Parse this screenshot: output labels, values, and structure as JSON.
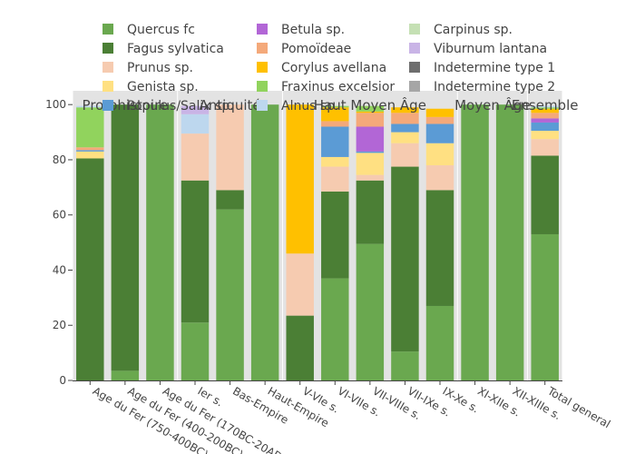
{
  "chart_data": {
    "type": "bar",
    "stacked": true,
    "title": "",
    "xlabel": "",
    "ylabel": "",
    "ylim": [
      0,
      105
    ],
    "yticks": [
      0,
      20,
      40,
      60,
      80,
      100
    ],
    "categories": [
      "Age du Fer (750-400BC)",
      "Age du Fer (400-200BC)",
      "Age du Fer (170BC-20AD)",
      "Ier s.",
      "Bas-Empire",
      "Haut-Empire",
      "V-VIe s.",
      "VI-VIIe s.",
      "VII-VIIIe s.",
      "VII-IXe s.",
      "IX-Xe s.",
      "XI-XIIe s.",
      "XII-XIIIe s.",
      "Total general"
    ],
    "groups": [
      {
        "label": "Protohistoire",
        "from": 0,
        "to": 2
      },
      {
        "label": "Antiquité",
        "from": 3,
        "to": 5
      },
      {
        "label": "Haut Moyen Âge",
        "from": 6,
        "to": 10
      },
      {
        "label": "Moyen Âge",
        "from": 11,
        "to": 12
      },
      {
        "label": "Ensemble",
        "from": 13,
        "to": 13
      }
    ],
    "series": [
      {
        "name": "Quercus fc",
        "color": "#6aa84f",
        "values": [
          0,
          3.5,
          100,
          21,
          62,
          100,
          0,
          37,
          49.5,
          10.5,
          27,
          100,
          100,
          53
        ]
      },
      {
        "name": "Fagus sylvatica",
        "color": "#4b7f35",
        "values": [
          80.5,
          96.5,
          0,
          51.5,
          7,
          0,
          23.5,
          31.5,
          23,
          67,
          42,
          0,
          0,
          28.5
        ]
      },
      {
        "name": "Prunus sp.",
        "color": "#f6cbb0",
        "values": [
          0,
          0,
          0,
          17,
          31,
          0,
          22.5,
          9,
          2,
          8.5,
          9,
          0,
          0,
          6
        ]
      },
      {
        "name": "Genista sp.",
        "color": "#ffe082",
        "values": [
          2.5,
          0,
          0,
          0,
          0,
          0,
          0,
          3.5,
          8,
          4,
          8,
          0,
          0,
          3
        ]
      },
      {
        "name": "Populus/Salix sp.",
        "color": "#5b9bd5",
        "values": [
          0.5,
          0,
          0,
          0,
          0,
          0,
          0,
          11,
          0.5,
          3,
          7,
          0,
          0,
          3
        ]
      },
      {
        "name": "Betula sp.",
        "color": "#b266d6",
        "values": [
          0,
          0,
          0,
          0,
          0,
          0,
          0,
          0,
          9,
          0,
          0,
          0,
          0,
          1.5
        ]
      },
      {
        "name": "Pomoïdeae",
        "color": "#f4a97a",
        "values": [
          1,
          0,
          0,
          0,
          0,
          0,
          0,
          2,
          5,
          4,
          2.5,
          0,
          0,
          2
        ]
      },
      {
        "name": "Corylus avellana",
        "color": "#ffc000",
        "values": [
          0,
          0,
          0,
          0,
          0,
          0,
          54,
          5,
          0.5,
          2,
          3,
          0,
          0,
          1.5
        ]
      },
      {
        "name": "Fraxinus excelsior",
        "color": "#91d35d",
        "values": [
          14.5,
          0,
          0,
          0,
          0,
          0,
          0,
          0.5,
          2,
          0,
          0,
          0,
          0,
          0.5
        ]
      },
      {
        "name": "Alnus sp.",
        "color": "#bdd7ee",
        "values": [
          0.5,
          0,
          0,
          7,
          0,
          0,
          0,
          0,
          0,
          0,
          0,
          0,
          0,
          0.5
        ]
      },
      {
        "name": "Carpinus sp.",
        "color": "#c5e0b4",
        "values": [
          0,
          0,
          0,
          0,
          0,
          0,
          0,
          0,
          0,
          0,
          0,
          0,
          0,
          0
        ]
      },
      {
        "name": "Viburnum lantana",
        "color": "#c9b4e6",
        "values": [
          0,
          0,
          0,
          3,
          0,
          0,
          0,
          0,
          0,
          0,
          0,
          0,
          0,
          0
        ]
      },
      {
        "name": "Indetermine type 1",
        "color": "#6e6e6e",
        "values": [
          0,
          0,
          0,
          0,
          0,
          0,
          0,
          0,
          0,
          0,
          0,
          0,
          0,
          0
        ]
      },
      {
        "name": "Indetermine type 2",
        "color": "#a6a6a6",
        "values": [
          0,
          0,
          0,
          0,
          0,
          0,
          0,
          0,
          0,
          0,
          0,
          0,
          0,
          0
        ]
      }
    ],
    "legend_placement": "top",
    "grid": false
  }
}
